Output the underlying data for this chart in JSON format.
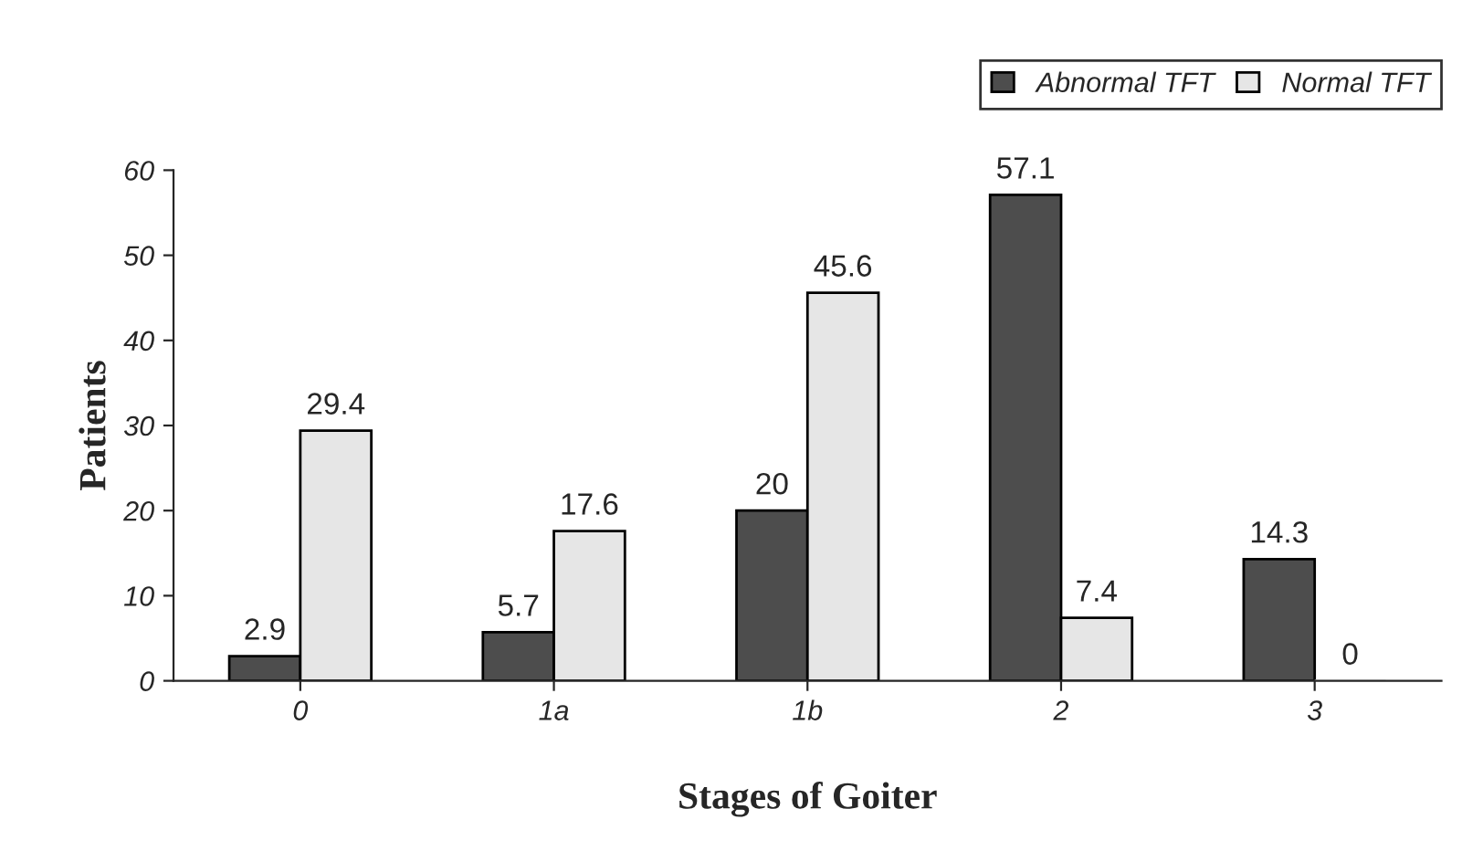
{
  "chart_data": {
    "type": "bar",
    "xlabel": "Stages of Goiter",
    "ylabel": "Patients",
    "categories": [
      "0",
      "1a",
      "1b",
      "2",
      "3"
    ],
    "series": [
      {
        "name": "Abnormal TFT",
        "color": "#4d4d4d",
        "values": [
          2.9,
          5.7,
          20,
          57.1,
          14.3
        ]
      },
      {
        "name": "Normal TFT",
        "color": "#e6e6e6",
        "values": [
          29.4,
          17.6,
          45.6,
          7.4,
          0
        ]
      }
    ],
    "ylim": [
      0,
      60
    ],
    "yticks": [
      0,
      10,
      20,
      30,
      40,
      50,
      60
    ],
    "data_labels": true,
    "legend": "top right",
    "grid": false
  }
}
